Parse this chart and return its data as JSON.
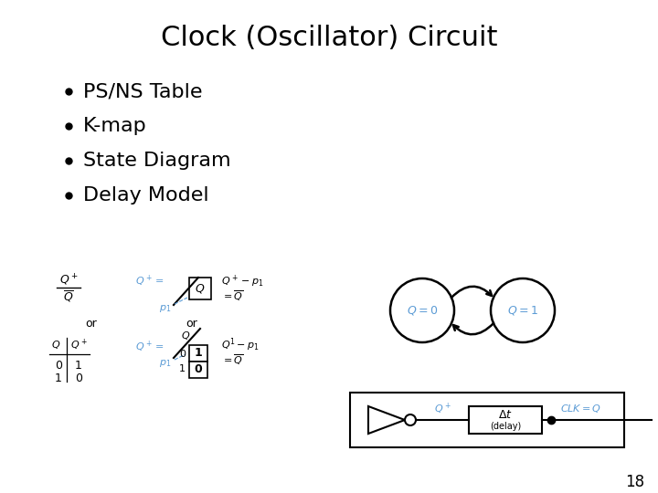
{
  "title": "Clock (Oscillator) Circuit",
  "bullets": [
    "PS/NS Table",
    "K-map",
    "State Diagram",
    "Delay Model"
  ],
  "slide_number": "18",
  "background_color": "#ffffff",
  "title_fontsize": 22,
  "bullet_fontsize": 16,
  "slide_num_fontsize": 12,
  "blue_color": "#5B9BD5",
  "black_color": "#000000"
}
